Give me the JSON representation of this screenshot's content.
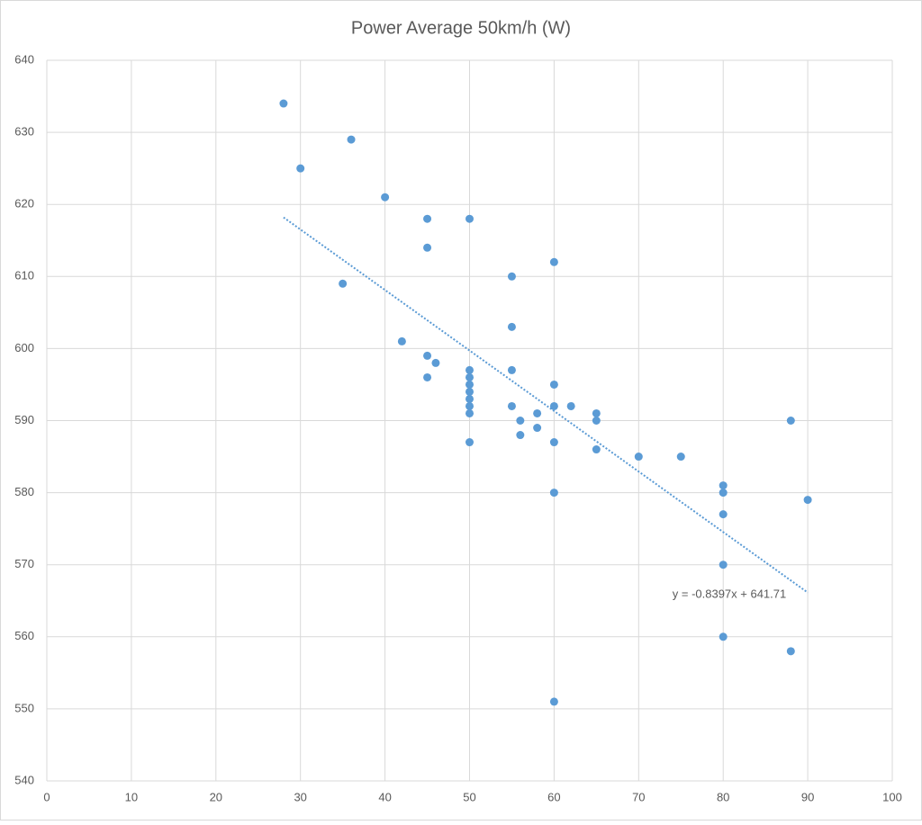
{
  "chart_data": {
    "type": "scatter",
    "title": "Power Average 50km/h (W)",
    "x": [
      28,
      30,
      36,
      40,
      35,
      45,
      45,
      50,
      42,
      45,
      45,
      46,
      50,
      50,
      50,
      50,
      50,
      50,
      50,
      50,
      55,
      55,
      55,
      55,
      56,
      56,
      58,
      58,
      60,
      60,
      60,
      60,
      60,
      60,
      62,
      65,
      65,
      65,
      70,
      75,
      80,
      80,
      80,
      80,
      80,
      88,
      88,
      90
    ],
    "series": [
      {
        "name": "Power Average 50km/h (W)",
        "color": "#5b9bd5",
        "values": [
          634,
          625,
          629,
          621,
          609,
          618,
          614,
          618,
          601,
          599,
          596,
          598,
          597,
          596,
          595,
          594,
          593,
          592,
          591,
          587,
          610,
          603,
          597,
          592,
          590,
          588,
          591,
          589,
          612,
          595,
          592,
          587,
          580,
          551,
          592,
          591,
          590,
          586,
          585,
          585,
          581,
          580,
          577,
          570,
          560,
          590,
          558,
          579
        ]
      }
    ],
    "xlim": [
      0,
      100
    ],
    "xticks": [
      0,
      10,
      20,
      30,
      40,
      50,
      60,
      70,
      80,
      90,
      100
    ],
    "ylim": [
      540,
      640
    ],
    "yticks": [
      540,
      550,
      560,
      570,
      580,
      590,
      600,
      610,
      620,
      630,
      640
    ],
    "grid": true,
    "trendline": {
      "slope": -0.8397,
      "intercept": 641.71,
      "color": "#5b9bd5",
      "label": "y = -0.8397x + 641.71"
    }
  }
}
